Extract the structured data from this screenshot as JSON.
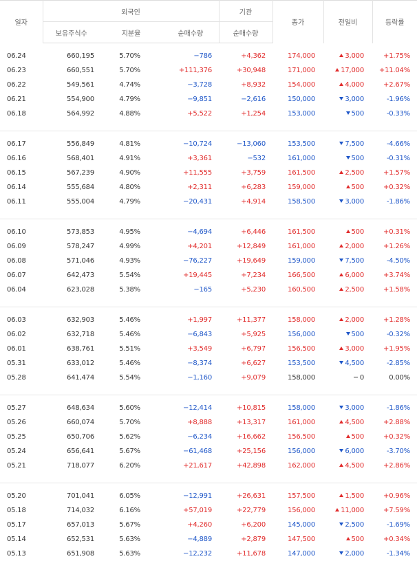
{
  "headers": {
    "date": "일자",
    "foreign": "외국인",
    "institution": "기관",
    "close": "종가",
    "change": "전일비",
    "rate": "등락률",
    "holdings": "보유주식수",
    "share": "지분율",
    "foreign_net": "순매수량",
    "inst_net": "순매수량"
  },
  "groups": [
    [
      {
        "date": "06.24",
        "holdings": "660,195",
        "share": "5.70%",
        "foreign_net": "−786",
        "inst_net": "+4,362",
        "close": "174,000",
        "change": "3,000",
        "dir": "up",
        "rate": "+1.75%"
      },
      {
        "date": "06.23",
        "holdings": "660,551",
        "share": "5.70%",
        "foreign_net": "+111,376",
        "inst_net": "+30,948",
        "close": "171,000",
        "change": "17,000",
        "dir": "up",
        "rate": "+11.04%"
      },
      {
        "date": "06.22",
        "holdings": "549,561",
        "share": "4.74%",
        "foreign_net": "−3,728",
        "inst_net": "+8,932",
        "close": "154,000",
        "change": "4,000",
        "dir": "up",
        "rate": "+2.67%"
      },
      {
        "date": "06.21",
        "holdings": "554,900",
        "share": "4.79%",
        "foreign_net": "−9,851",
        "inst_net": "−2,616",
        "close": "150,000",
        "change": "3,000",
        "dir": "down",
        "rate": "-1.96%"
      },
      {
        "date": "06.18",
        "holdings": "564,992",
        "share": "4.88%",
        "foreign_net": "+5,522",
        "inst_net": "+1,254",
        "close": "153,000",
        "change": "500",
        "dir": "down",
        "rate": "-0.33%"
      }
    ],
    [
      {
        "date": "06.17",
        "holdings": "556,849",
        "share": "4.81%",
        "foreign_net": "−10,724",
        "inst_net": "−13,060",
        "close": "153,500",
        "change": "7,500",
        "dir": "down",
        "rate": "-4.66%"
      },
      {
        "date": "06.16",
        "holdings": "568,401",
        "share": "4.91%",
        "foreign_net": "+3,361",
        "inst_net": "−532",
        "close": "161,000",
        "change": "500",
        "dir": "down",
        "rate": "-0.31%"
      },
      {
        "date": "06.15",
        "holdings": "567,239",
        "share": "4.90%",
        "foreign_net": "+11,555",
        "inst_net": "+3,759",
        "close": "161,500",
        "change": "2,500",
        "dir": "up",
        "rate": "+1.57%"
      },
      {
        "date": "06.14",
        "holdings": "555,684",
        "share": "4.80%",
        "foreign_net": "+2,311",
        "inst_net": "+6,283",
        "close": "159,000",
        "change": "500",
        "dir": "up",
        "rate": "+0.32%"
      },
      {
        "date": "06.11",
        "holdings": "555,004",
        "share": "4.79%",
        "foreign_net": "−20,431",
        "inst_net": "+4,914",
        "close": "158,500",
        "change": "3,000",
        "dir": "down",
        "rate": "-1.86%"
      }
    ],
    [
      {
        "date": "06.10",
        "holdings": "573,853",
        "share": "4.95%",
        "foreign_net": "−4,694",
        "inst_net": "+6,446",
        "close": "161,500",
        "change": "500",
        "dir": "up",
        "rate": "+0.31%"
      },
      {
        "date": "06.09",
        "holdings": "578,247",
        "share": "4.99%",
        "foreign_net": "+4,201",
        "inst_net": "+12,849",
        "close": "161,000",
        "change": "2,000",
        "dir": "up",
        "rate": "+1.26%"
      },
      {
        "date": "06.08",
        "holdings": "571,046",
        "share": "4.93%",
        "foreign_net": "−76,227",
        "inst_net": "+19,649",
        "close": "159,000",
        "change": "7,500",
        "dir": "down",
        "rate": "-4.50%"
      },
      {
        "date": "06.07",
        "holdings": "642,473",
        "share": "5.54%",
        "foreign_net": "+19,445",
        "inst_net": "+7,234",
        "close": "166,500",
        "change": "6,000",
        "dir": "up",
        "rate": "+3.74%"
      },
      {
        "date": "06.04",
        "holdings": "623,028",
        "share": "5.38%",
        "foreign_net": "−165",
        "inst_net": "+5,230",
        "close": "160,500",
        "change": "2,500",
        "dir": "up",
        "rate": "+1.58%"
      }
    ],
    [
      {
        "date": "06.03",
        "holdings": "632,903",
        "share": "5.46%",
        "foreign_net": "+1,997",
        "inst_net": "+11,377",
        "close": "158,000",
        "change": "2,000",
        "dir": "up",
        "rate": "+1.28%"
      },
      {
        "date": "06.02",
        "holdings": "632,718",
        "share": "5.46%",
        "foreign_net": "−6,843",
        "inst_net": "+5,925",
        "close": "156,000",
        "change": "500",
        "dir": "down",
        "rate": "-0.32%"
      },
      {
        "date": "06.01",
        "holdings": "638,761",
        "share": "5.51%",
        "foreign_net": "+3,549",
        "inst_net": "+6,797",
        "close": "156,500",
        "change": "3,000",
        "dir": "up",
        "rate": "+1.95%"
      },
      {
        "date": "05.31",
        "holdings": "633,012",
        "share": "5.46%",
        "foreign_net": "−8,374",
        "inst_net": "+6,627",
        "close": "153,500",
        "change": "4,500",
        "dir": "down",
        "rate": "-2.85%"
      },
      {
        "date": "05.28",
        "holdings": "641,474",
        "share": "5.54%",
        "foreign_net": "−1,160",
        "inst_net": "+9,079",
        "close": "158,000",
        "change": "0",
        "dir": "flat",
        "rate": "0.00%"
      }
    ],
    [
      {
        "date": "05.27",
        "holdings": "648,634",
        "share": "5.60%",
        "foreign_net": "−12,414",
        "inst_net": "+10,815",
        "close": "158,000",
        "change": "3,000",
        "dir": "down",
        "rate": "-1.86%"
      },
      {
        "date": "05.26",
        "holdings": "660,074",
        "share": "5.70%",
        "foreign_net": "+8,888",
        "inst_net": "+13,317",
        "close": "161,000",
        "change": "4,500",
        "dir": "up",
        "rate": "+2.88%"
      },
      {
        "date": "05.25",
        "holdings": "650,706",
        "share": "5.62%",
        "foreign_net": "−6,234",
        "inst_net": "+16,662",
        "close": "156,500",
        "change": "500",
        "dir": "up",
        "rate": "+0.32%"
      },
      {
        "date": "05.24",
        "holdings": "656,641",
        "share": "5.67%",
        "foreign_net": "−61,468",
        "inst_net": "+25,156",
        "close": "156,000",
        "change": "6,000",
        "dir": "down",
        "rate": "-3.70%"
      },
      {
        "date": "05.21",
        "holdings": "718,077",
        "share": "6.20%",
        "foreign_net": "+21,617",
        "inst_net": "+42,898",
        "close": "162,000",
        "change": "4,500",
        "dir": "up",
        "rate": "+2.86%"
      }
    ],
    [
      {
        "date": "05.20",
        "holdings": "701,041",
        "share": "6.05%",
        "foreign_net": "−12,991",
        "inst_net": "+26,631",
        "close": "157,500",
        "change": "1,500",
        "dir": "up",
        "rate": "+0.96%"
      },
      {
        "date": "05.18",
        "holdings": "714,032",
        "share": "6.16%",
        "foreign_net": "+57,019",
        "inst_net": "+22,779",
        "close": "156,000",
        "change": "11,000",
        "dir": "up",
        "rate": "+7.59%"
      },
      {
        "date": "05.17",
        "holdings": "657,013",
        "share": "5.67%",
        "foreign_net": "+4,260",
        "inst_net": "+6,200",
        "close": "145,000",
        "change": "2,500",
        "dir": "down",
        "rate": "-1.69%"
      },
      {
        "date": "05.14",
        "holdings": "652,531",
        "share": "5.63%",
        "foreign_net": "−4,889",
        "inst_net": "+2,879",
        "close": "147,500",
        "change": "500",
        "dir": "up",
        "rate": "+0.34%"
      },
      {
        "date": "05.13",
        "holdings": "651,908",
        "share": "5.63%",
        "foreign_net": "−12,232",
        "inst_net": "+11,678",
        "close": "147,000",
        "change": "2,000",
        "dir": "down",
        "rate": "-1.34%"
      }
    ]
  ],
  "colors": {
    "up": "#e12b2b",
    "down": "#1e56c8"
  },
  "icons": {
    "up": "triangle-up-icon",
    "down": "triangle-down-icon",
    "flat": "dash-icon"
  }
}
